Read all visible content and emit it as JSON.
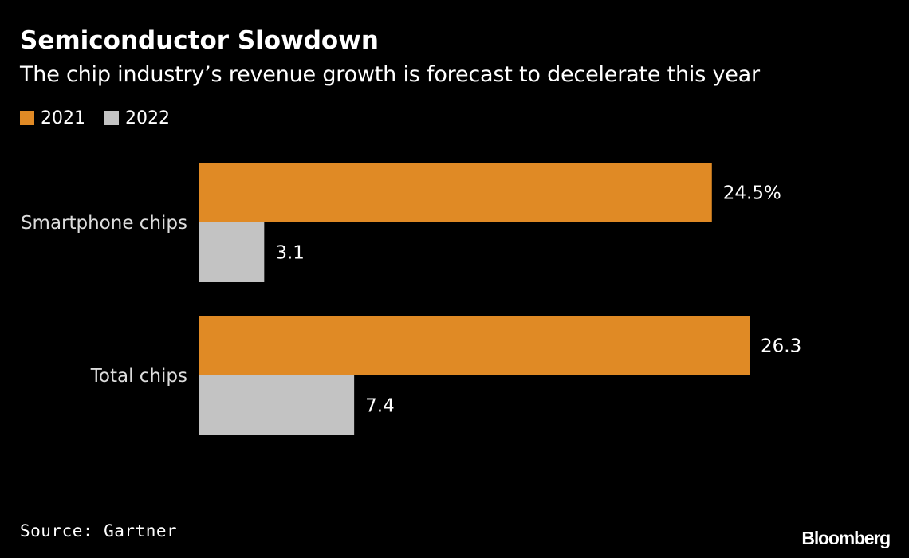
{
  "header": {
    "title": "Semiconductor Slowdown",
    "subtitle": "The chip industry’s revenue growth is forecast to decelerate this year"
  },
  "legend": [
    {
      "label": "2021",
      "color": "#E08A25"
    },
    {
      "label": "2022",
      "color": "#C3C3C3"
    }
  ],
  "chart_data": {
    "type": "bar",
    "orientation": "horizontal",
    "title": "Semiconductor Slowdown",
    "subtitle": "The chip industry’s revenue growth is forecast to decelerate this year",
    "categories": [
      "Smartphone chips",
      "Total chips"
    ],
    "series": [
      {
        "name": "2021",
        "values": [
          24.5,
          26.3
        ],
        "labels": [
          "24.5%",
          "26.3"
        ],
        "color": "#E08A25"
      },
      {
        "name": "2022",
        "values": [
          3.1,
          7.4
        ],
        "labels": [
          "3.1",
          "7.4"
        ],
        "color": "#C3C3C3"
      }
    ],
    "value_unit": "%",
    "xlim": [
      0,
      26.3
    ],
    "grid": false,
    "legend_position": "top-left"
  },
  "footer": {
    "source": "Source: Gartner",
    "brand": "Bloomberg"
  }
}
